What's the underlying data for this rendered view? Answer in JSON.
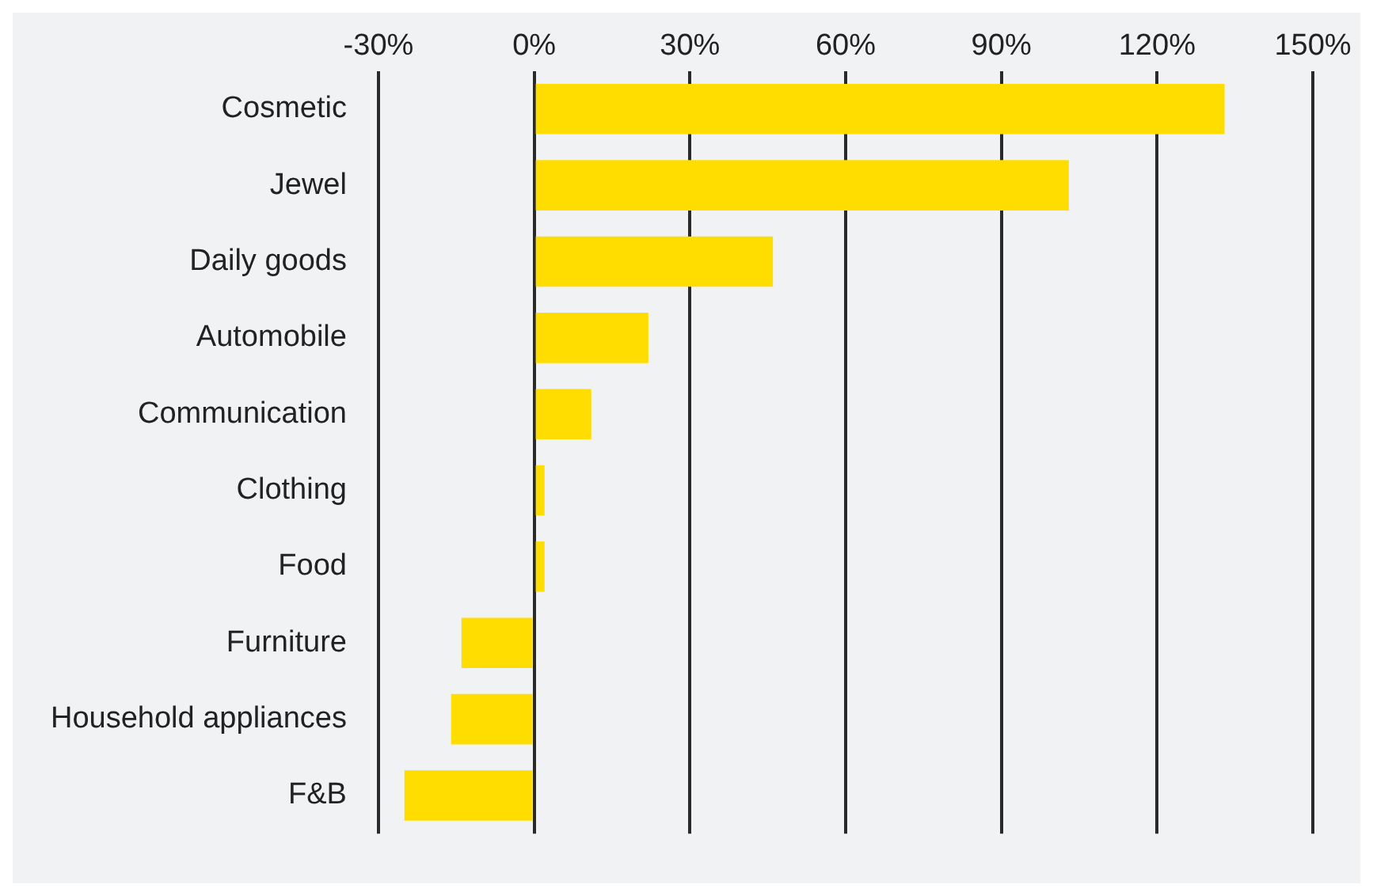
{
  "chart_data": {
    "type": "bar",
    "orientation": "horizontal",
    "categories": [
      "Cosmetic",
      "Jewel",
      "Daily goods",
      "Automobile",
      "Communication",
      "Clothing",
      "Food",
      "Furniture",
      "Household appliances",
      "F&B"
    ],
    "values": [
      133,
      103,
      46,
      22,
      11,
      2,
      2,
      -14,
      -16,
      -25
    ],
    "color": "#ffdd00",
    "xlim": [
      -30,
      150
    ],
    "xticks": [
      {
        "value": -30,
        "label": "-30%"
      },
      {
        "value": 0,
        "label": "0%"
      },
      {
        "value": 30,
        "label": "30%"
      },
      {
        "value": 60,
        "label": "60%"
      },
      {
        "value": 90,
        "label": "90%"
      },
      {
        "value": 120,
        "label": "120%"
      },
      {
        "value": 150,
        "label": "150%"
      }
    ],
    "grid": "x"
  }
}
